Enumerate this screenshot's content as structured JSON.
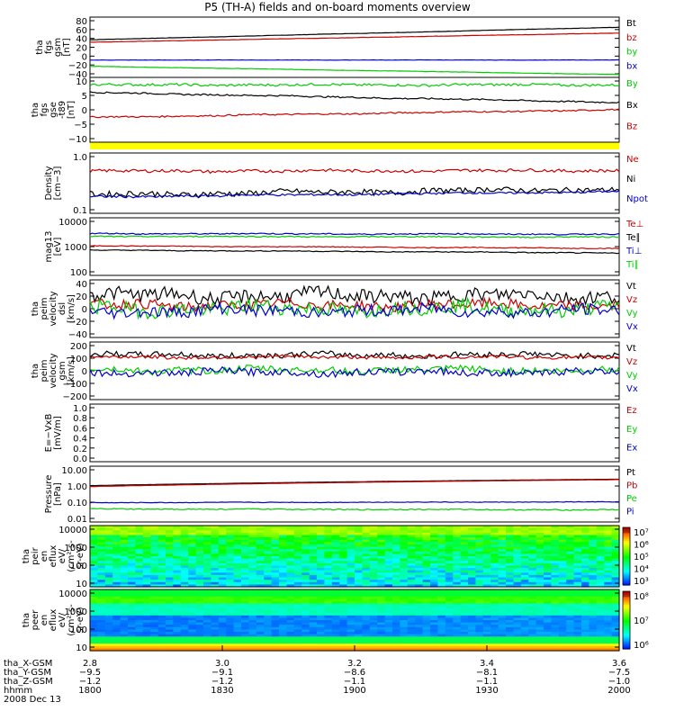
{
  "title": "P5 (TH-A) fields and on-board moments overview",
  "colors": {
    "black": "#000000",
    "red": "#cc0000",
    "green": "#00cc00",
    "blue": "#0000cc",
    "yellow": "#ffff00"
  },
  "chart_data": [
    {
      "type": "line",
      "ylabel": [
        "tha",
        "fgs",
        "gsm",
        "[nT]"
      ],
      "yticks": [
        "80",
        "60",
        "40",
        "20",
        "0",
        "−20",
        "−40"
      ],
      "ylim": [
        -40,
        85
      ],
      "series": [
        {
          "name": "Bt",
          "color": "black",
          "start": 38,
          "end": 64,
          "noise": 0.3
        },
        {
          "name": "bz",
          "color": "red",
          "start": 33,
          "end": 52,
          "noise": 0.3
        },
        {
          "name": "by",
          "color": "green",
          "start": -17,
          "end": -34,
          "noise": 0.3
        },
        {
          "name": "bx",
          "color": "blue",
          "start": -4,
          "end": -4,
          "noise": 0.3
        }
      ]
    },
    {
      "type": "line",
      "ylabel": [
        "tha",
        "fgs",
        "gse",
        "-t89",
        "[nT]"
      ],
      "yticks": [
        "10",
        "5",
        "0",
        "−5",
        "−10"
      ],
      "ylim": [
        -15,
        11
      ],
      "series": [
        {
          "name": "By",
          "color": "green",
          "start": 8,
          "end": 8,
          "noise": 0.5
        },
        {
          "name": "Bx",
          "color": "black",
          "start": 5,
          "end": 1,
          "noise": 0.3
        },
        {
          "name": "Bz",
          "color": "red",
          "start": -5,
          "end": -2,
          "noise": 0.3
        }
      ]
    },
    {
      "type": "line",
      "ylabel": [
        "Density",
        "[cm−3]"
      ],
      "yticks": [
        "1.0",
        "0.1"
      ],
      "ylim": [
        0.1,
        1.3
      ],
      "log": true,
      "series": [
        {
          "name": "Ne",
          "color": "red",
          "start": 0.6,
          "end": 0.62,
          "noise": 0.04
        },
        {
          "name": "Ni",
          "color": "black",
          "start": 0.22,
          "end": 0.28,
          "noise": 0.03
        },
        {
          "name": "Npot",
          "color": "blue",
          "start": 0.2,
          "end": 0.25,
          "noise": 0.01
        }
      ]
    },
    {
      "type": "line",
      "ylabel": [
        "mag13",
        "[eV]"
      ],
      "yticks": [
        "10000",
        "1000",
        "100"
      ],
      "ylim": [
        100,
        15000
      ],
      "log": true,
      "series": [
        {
          "name": "Te⊥",
          "color": "red",
          "start": 1300,
          "end": 1050,
          "noise": 40
        },
        {
          "name": "Te∥",
          "color": "black",
          "start": 900,
          "end": 700,
          "noise": 30
        },
        {
          "name": "Ti⊥",
          "color": "blue",
          "start": 3800,
          "end": 3600,
          "noise": 200
        },
        {
          "name": "Ti∥",
          "color": "green",
          "start": 3000,
          "end": 2800,
          "noise": 150
        }
      ]
    },
    {
      "type": "line",
      "ylabel": [
        "tha",
        "peim",
        "velocity",
        "dsl",
        "[km/s]"
      ],
      "yticks": [
        "40",
        "20",
        "0",
        "−20",
        "−40"
      ],
      "ylim": [
        -40,
        40
      ],
      "series": [
        {
          "name": "Vt",
          "color": "black",
          "start": 18,
          "end": 18,
          "noise": 10
        },
        {
          "name": "Vz",
          "color": "red",
          "start": 5,
          "end": 5,
          "noise": 7
        },
        {
          "name": "Vy",
          "color": "green",
          "start": 0,
          "end": 0,
          "noise": 10
        },
        {
          "name": "Vx",
          "color": "blue",
          "start": -3,
          "end": -3,
          "noise": 8
        }
      ]
    },
    {
      "type": "line",
      "ylabel": [
        "tha",
        "peim",
        "velocity",
        "gsm",
        "[km/s]"
      ],
      "yticks": [
        "200",
        "100",
        "0",
        "−100",
        "−200"
      ],
      "ylim": [
        -200,
        200
      ],
      "series": [
        {
          "name": "Vt",
          "color": "black",
          "start": 110,
          "end": 110,
          "noise": 20
        },
        {
          "name": "Vz",
          "color": "red",
          "start": 95,
          "end": 95,
          "noise": 12
        },
        {
          "name": "Vy",
          "color": "green",
          "start": 5,
          "end": 5,
          "noise": 25
        },
        {
          "name": "Vx",
          "color": "blue",
          "start": -10,
          "end": -10,
          "noise": 25
        }
      ]
    },
    {
      "type": "line",
      "ylabel": [
        "E=−VxB",
        "[mV/m]"
      ],
      "yticks": [
        "1.0",
        "0.8",
        "0.6",
        "0.4",
        "0.2",
        "0.0"
      ],
      "ylim": [
        0,
        1
      ],
      "series": [
        {
          "name": "Ez",
          "color": "red",
          "start": null,
          "end": null,
          "noise": 0
        },
        {
          "name": "Ey",
          "color": "green",
          "start": null,
          "end": null,
          "noise": 0
        },
        {
          "name": "Ex",
          "color": "blue",
          "start": null,
          "end": null,
          "noise": 0
        }
      ]
    },
    {
      "type": "line",
      "ylabel": [
        "Pressure",
        "[nPa]"
      ],
      "yticks": [
        "10.00",
        "1.00",
        "0.10",
        "0.01"
      ],
      "ylim": [
        0.01,
        10
      ],
      "log": true,
      "series": [
        {
          "name": "Pt",
          "color": "black",
          "start": 0.9,
          "end": 2.0,
          "noise": 0.01
        },
        {
          "name": "Pb",
          "color": "red",
          "start": 0.8,
          "end": 1.9,
          "noise": 0.01
        },
        {
          "name": "Pe",
          "color": "green",
          "start": 0.05,
          "end": 0.045,
          "noise": 0.003
        },
        {
          "name": "Pi",
          "color": "blue",
          "start": 0.11,
          "end": 0.12,
          "noise": 0.004
        }
      ]
    },
    {
      "type": "heatmap",
      "ylabel": [
        "tha",
        "peir",
        "en",
        "eflux",
        "eV/",
        "(cm²-s-",
        "sr-eV)"
      ],
      "yticks": [
        "10000",
        "1000",
        "100",
        "10"
      ],
      "colorbar": [
        "10⁷",
        "10⁶",
        "10⁵",
        "10⁴",
        "10³"
      ]
    },
    {
      "type": "heatmap",
      "ylabel": [
        "tha",
        "peer",
        "en",
        "eflux",
        "eV/",
        "(cm²-s-",
        "sr-eV)"
      ],
      "yticks": [
        "10000",
        "1000",
        "100",
        "10"
      ],
      "colorbar": [
        "10⁸",
        "10⁷",
        "10⁶"
      ]
    }
  ],
  "x_axis": {
    "rows": [
      {
        "label": "tha_X-GSM",
        "values": [
          "2.8",
          "3.0",
          "3.2",
          "3.4",
          "3.6"
        ]
      },
      {
        "label": "tha_Y-GSM",
        "values": [
          "−9.5",
          "−9.1",
          "−8.6",
          "−8.1",
          "−7.5"
        ]
      },
      {
        "label": "tha_Z-GSM",
        "values": [
          "−1.2",
          "−1.2",
          "−1.1",
          "−1.1",
          "−1.0"
        ]
      },
      {
        "label": "hhmm",
        "values": [
          "1800",
          "1830",
          "1900",
          "1930",
          "2000"
        ]
      }
    ],
    "date": "2008 Dec 13"
  }
}
